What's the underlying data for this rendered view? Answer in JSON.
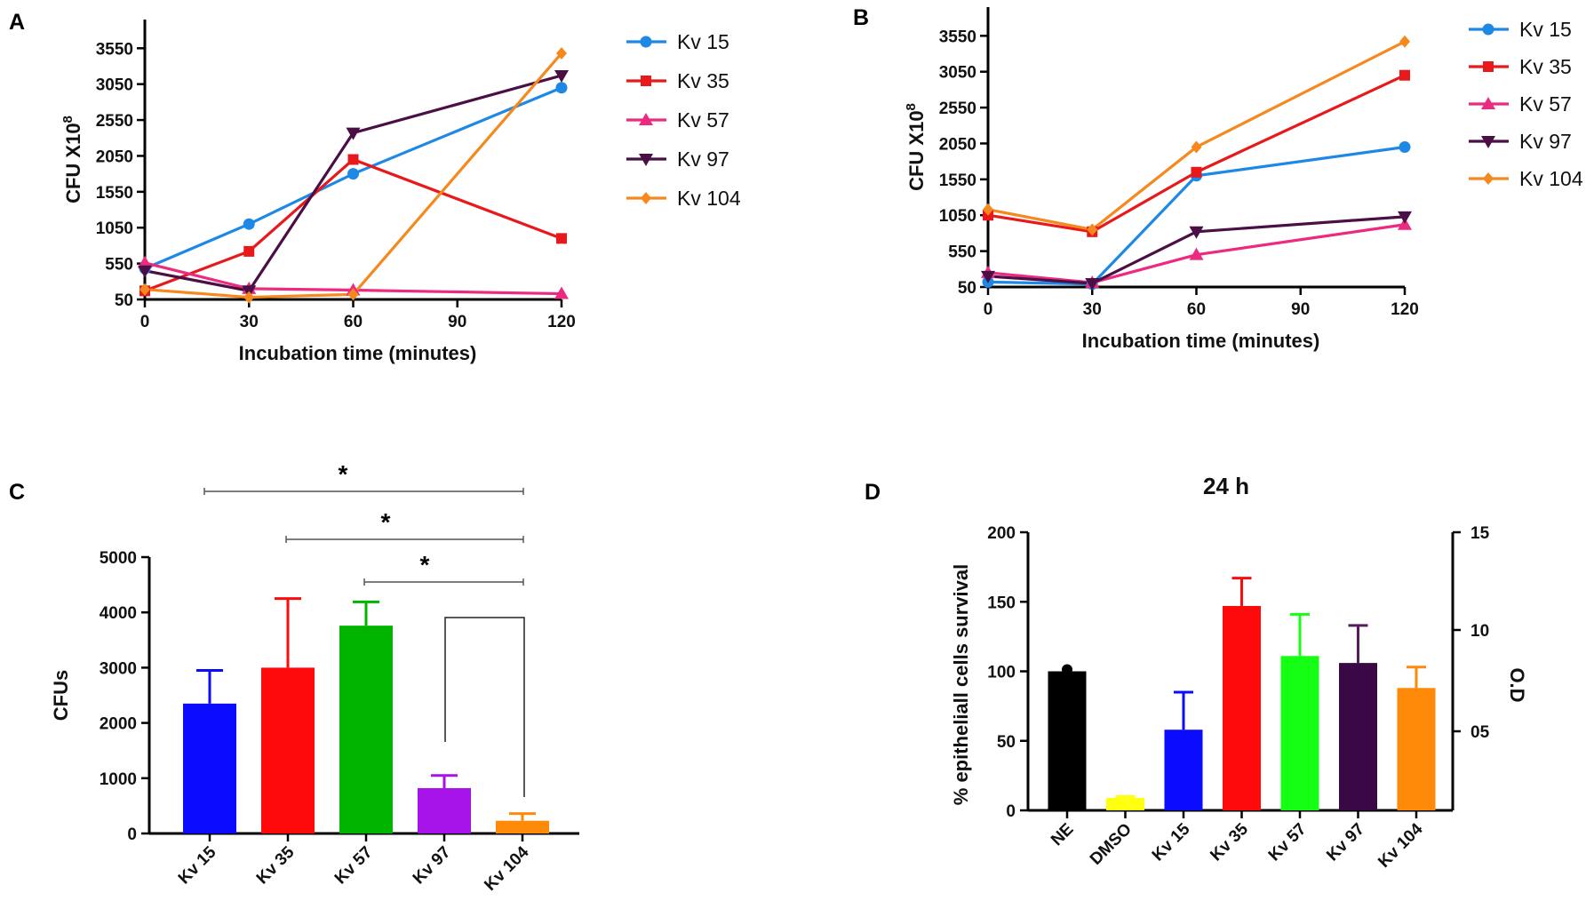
{
  "chart_data": [
    {
      "panel": "A",
      "type": "line",
      "xlabel": "Incubation time (minutes)",
      "ylabel": "CFU X10",
      "ylabel_sup": "8",
      "x": [
        0,
        30,
        60,
        120
      ],
      "xticks": [
        0,
        30,
        60,
        90,
        120
      ],
      "yticks": [
        50,
        550,
        1050,
        1550,
        2050,
        2550,
        3050,
        3550
      ],
      "xlim": [
        0,
        120
      ],
      "ylim": [
        50,
        3950
      ],
      "series": [
        {
          "name": "Kv 15",
          "color": "#1e88e5",
          "marker": "circle",
          "values": [
            480,
            1100,
            1800,
            3000
          ]
        },
        {
          "name": "Kv 35",
          "color": "#e8191b",
          "marker": "square",
          "values": [
            170,
            720,
            2000,
            900
          ]
        },
        {
          "name": "Kv 57",
          "color": "#ec2a7f",
          "marker": "triangle-up",
          "values": [
            560,
            200,
            180,
            130
          ]
        },
        {
          "name": "Kv 97",
          "color": "#4a0f45",
          "marker": "triangle-down",
          "values": [
            450,
            170,
            2370,
            3170
          ]
        },
        {
          "name": "Kv 104",
          "color": "#f5891e",
          "marker": "diamond",
          "values": [
            190,
            80,
            120,
            3480
          ]
        }
      ]
    },
    {
      "panel": "B",
      "type": "line",
      "xlabel": "Incubation time (minutes)",
      "ylabel": "CFU X10",
      "ylabel_sup": "8",
      "x": [
        0,
        30,
        60,
        120
      ],
      "xticks": [
        0,
        30,
        60,
        90,
        120
      ],
      "yticks": [
        50,
        550,
        1050,
        1550,
        2050,
        2550,
        3050,
        3550
      ],
      "xlim": [
        0,
        120
      ],
      "ylim": [
        50,
        3950
      ],
      "series": [
        {
          "name": "Kv 15",
          "color": "#1e88e5",
          "marker": "circle",
          "values": [
            120,
            90,
            1600,
            2000
          ]
        },
        {
          "name": "Kv 35",
          "color": "#e8191b",
          "marker": "square",
          "values": [
            1050,
            820,
            1650,
            3000
          ]
        },
        {
          "name": "Kv 57",
          "color": "#ec2a7f",
          "marker": "triangle-up",
          "values": [
            250,
            110,
            500,
            920
          ]
        },
        {
          "name": "Kv 97",
          "color": "#4a0f45",
          "marker": "triangle-down",
          "values": [
            200,
            100,
            820,
            1030
          ]
        },
        {
          "name": "Kv 104",
          "color": "#f5891e",
          "marker": "diamond",
          "values": [
            1130,
            850,
            2000,
            3470
          ]
        }
      ]
    },
    {
      "panel": "C",
      "type": "bar",
      "ylabel": "CFUs",
      "categories": [
        "Kv 15",
        "Kv 35",
        "Kv 57",
        "Kv 97",
        "Kv 104"
      ],
      "values": [
        2350,
        3000,
        3760,
        820,
        230
      ],
      "errors": [
        600,
        1250,
        430,
        230,
        130
      ],
      "colors": [
        "#0b0bff",
        "#ff0a0a",
        "#00b400",
        "#a513e8",
        "#ff8a0a"
      ],
      "yticks": [
        0,
        1000,
        2000,
        3000,
        4000,
        5000
      ],
      "ylim": [
        0,
        5000
      ],
      "significance": [
        {
          "from": 0,
          "to": 4,
          "label": "*"
        },
        {
          "from": 1,
          "to": 4,
          "label": "*"
        },
        {
          "from": 2,
          "to": 4,
          "label": "*"
        }
      ],
      "bracket": {
        "from": 3,
        "to": 4
      }
    },
    {
      "panel": "D",
      "type": "bar",
      "title": "24 h",
      "ylabel": "% epitheliall cells survival",
      "y2label": "O.D",
      "categories": [
        "NE",
        "DMSO",
        "Kv 15",
        "Kv 35",
        "Kv 57",
        "Kv 97",
        "Kv 104"
      ],
      "values": [
        100,
        9,
        58,
        147,
        111,
        106,
        88
      ],
      "errors": [
        0,
        1,
        27,
        20,
        30,
        27,
        15
      ],
      "colors": [
        "#000000",
        "#ffff10",
        "#0b0bff",
        "#ff0a0a",
        "#14ff14",
        "#3a0845",
        "#ff8a0a"
      ],
      "yticks": [
        0,
        50,
        100,
        150,
        200
      ],
      "ylim": [
        0,
        200
      ],
      "y2ticks": [
        "05",
        "10",
        "15"
      ]
    }
  ],
  "panels": {
    "A": "A",
    "B": "B",
    "C": "C",
    "D": "D"
  }
}
